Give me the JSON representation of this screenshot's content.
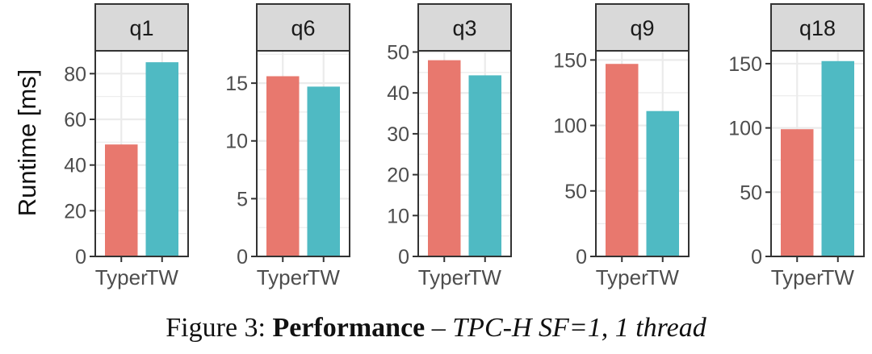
{
  "figure": {
    "caption_label": "Figure 3:",
    "caption_title": "Performance",
    "caption_dash": "–",
    "caption_subtitle": "TPC-H SF=1, 1 thread"
  },
  "colors": {
    "Typer": "#E8786E",
    "TW": "#4FBAC3",
    "strip_fill": "#D9D9D9",
    "frame": "#333333",
    "grid": "#EBEBEB",
    "tick_text": "#4D4D4D"
  },
  "chart_data": {
    "type": "bar",
    "ylabel": "Runtime [ms]",
    "categories": [
      "Typer",
      "TW"
    ],
    "facets": [
      {
        "name": "q1",
        "values": [
          49,
          85
        ],
        "ylim": [
          0,
          90
        ],
        "ticks": [
          0,
          20,
          40,
          60,
          80
        ]
      },
      {
        "name": "q6",
        "values": [
          15.6,
          14.7
        ],
        "ylim": [
          0,
          17.8
        ],
        "ticks": [
          0,
          5,
          10,
          15
        ]
      },
      {
        "name": "q3",
        "values": [
          48,
          44.3
        ],
        "ylim": [
          0,
          50.3
        ],
        "ticks": [
          0,
          10,
          20,
          30,
          40,
          50
        ]
      },
      {
        "name": "q9",
        "values": [
          147,
          111
        ],
        "ylim": [
          0,
          157
        ],
        "ticks": [
          0,
          50,
          100,
          150
        ]
      },
      {
        "name": "q18",
        "values": [
          99,
          152
        ],
        "ylim": [
          0,
          160
        ],
        "ticks": [
          0,
          50,
          100,
          150
        ]
      }
    ]
  }
}
